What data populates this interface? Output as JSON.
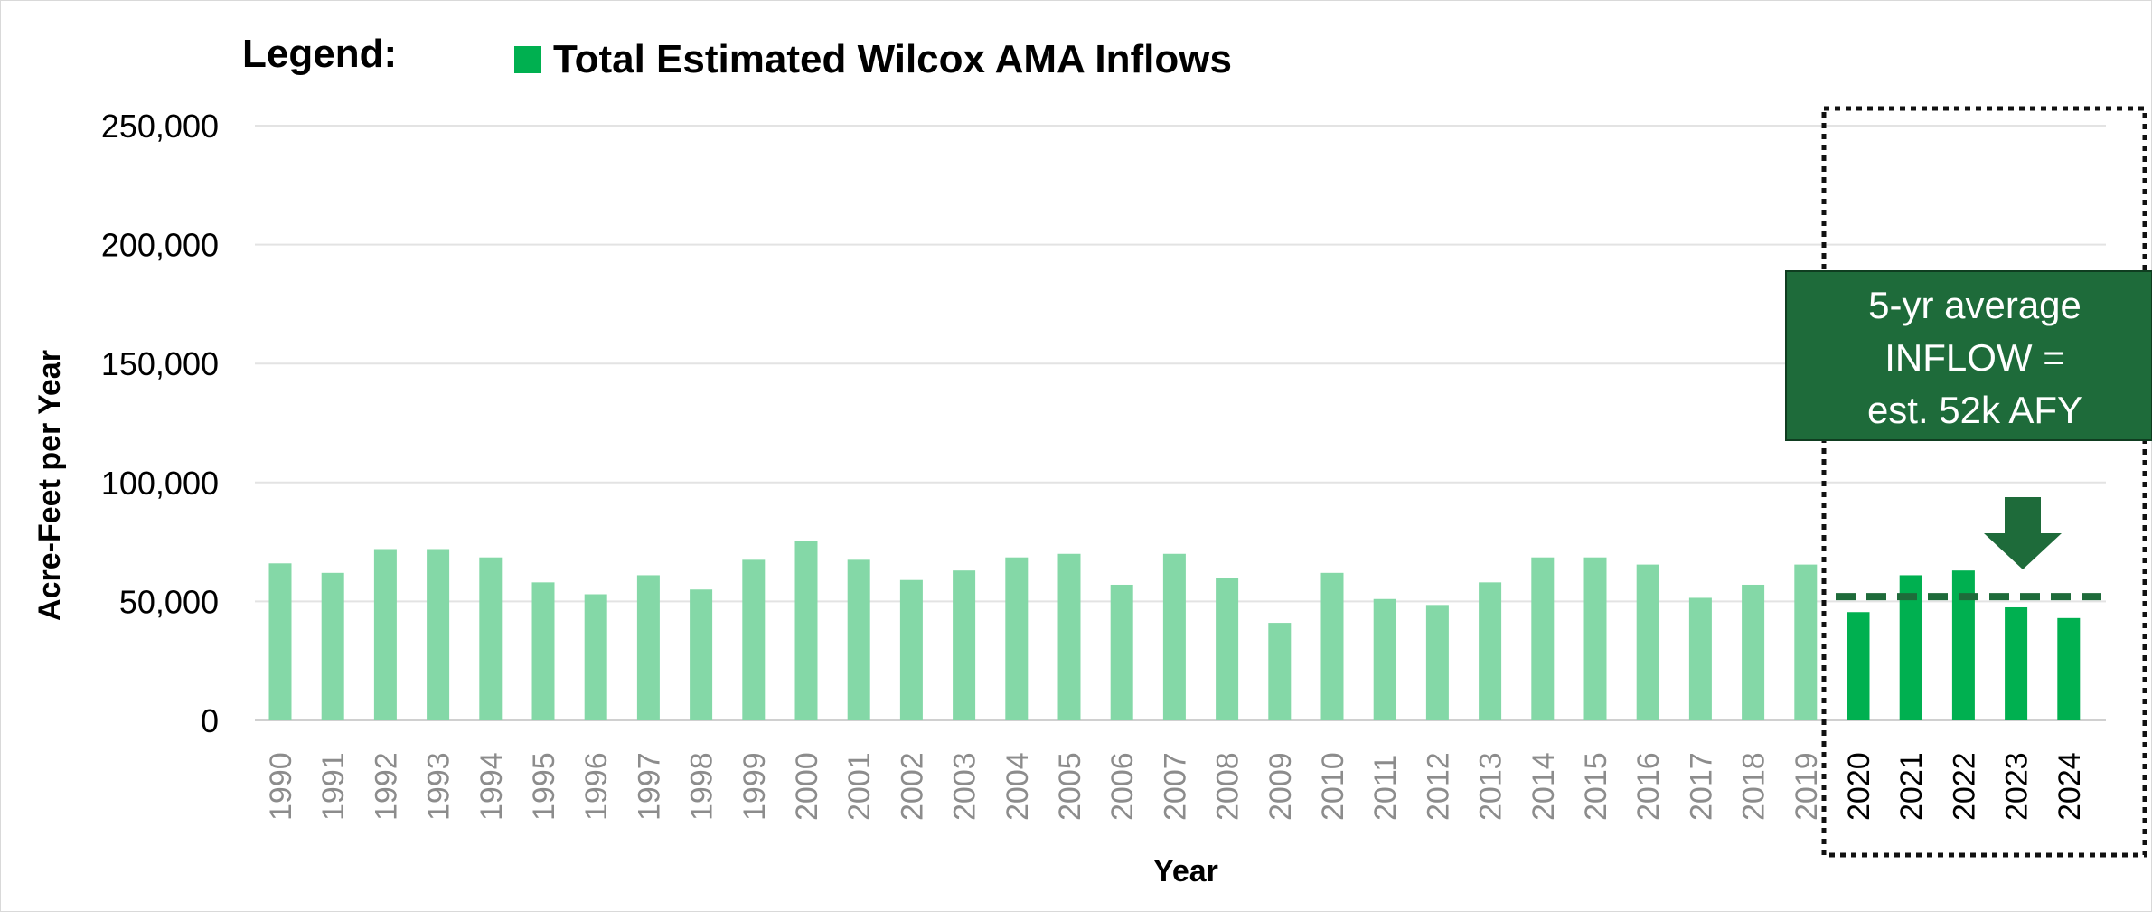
{
  "chart_data": {
    "type": "bar",
    "legend_title": "Legend:",
    "legend": [
      {
        "name": "Total Estimated Wilcox AMA Inflows",
        "color": "#00b050"
      }
    ],
    "xlabel": "Year",
    "ylabel": "Acre-Feet per Year",
    "ylim": [
      0,
      250000
    ],
    "yticks": [
      "0",
      "50,000",
      "100,000",
      "150,000",
      "200,000",
      "250,000"
    ],
    "ytick_values": [
      0,
      50000,
      100000,
      150000,
      200000,
      250000
    ],
    "grid": true,
    "categories": [
      "1990",
      "1991",
      "1992",
      "1993",
      "1994",
      "1995",
      "1996",
      "1997",
      "1998",
      "1999",
      "2000",
      "2001",
      "2002",
      "2003",
      "2004",
      "2005",
      "2006",
      "2007",
      "2008",
      "2009",
      "2010",
      "2011",
      "2012",
      "2013",
      "2014",
      "2015",
      "2016",
      "2017",
      "2018",
      "2019",
      "2020",
      "2021",
      "2022",
      "2023",
      "2024"
    ],
    "series": [
      {
        "name": "Total Estimated Wilcox AMA Inflows",
        "values": [
          66000,
          62000,
          72000,
          72000,
          68500,
          58000,
          53000,
          61000,
          55000,
          67500,
          75500,
          67500,
          59000,
          63000,
          68500,
          70000,
          57000,
          70000,
          60000,
          41000,
          62000,
          51000,
          48500,
          58000,
          68500,
          68500,
          65500,
          51500,
          57000,
          65500,
          45500,
          61000,
          63000,
          47500,
          43000
        ]
      }
    ],
    "highlighted_years": [
      "2020",
      "2021",
      "2022",
      "2023",
      "2024"
    ],
    "colors": {
      "highlight_bar": "#00b050",
      "faded_bar": "#84d8a7",
      "faded_tick": "#8c8c8c",
      "highlight_tick": "#000000",
      "average_line": "#1e6b3a",
      "callout_fill": "#1e6b3a",
      "arrow": "#1e6b3a"
    },
    "average_line_value": 52000,
    "callout": {
      "line1": "5-yr average",
      "line2": "INFLOW =",
      "line3": "est. 52k AFY"
    }
  }
}
